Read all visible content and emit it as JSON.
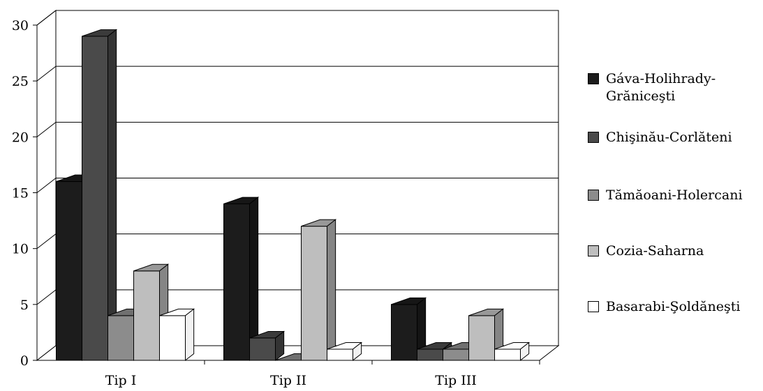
{
  "chart_data": {
    "type": "bar",
    "categories": [
      "Tip I",
      "Tip II",
      "Tip III"
    ],
    "ylim": [
      0,
      30
    ],
    "yticks": [
      0,
      5,
      10,
      15,
      20,
      25,
      30
    ],
    "grid": true,
    "legend_position": "right",
    "series": [
      {
        "name": "Gáva-Holihrady-Grăniceşti",
        "values": [
          16,
          14,
          5
        ],
        "color": "#1c1c1c"
      },
      {
        "name": "Chişinău-Corlăteni",
        "values": [
          29,
          2,
          1
        ],
        "color": "#4a4a4a"
      },
      {
        "name": "Tămăoani-Holercani",
        "values": [
          4,
          0,
          1
        ],
        "color": "#8c8c8c"
      },
      {
        "name": "Cozia-Saharna",
        "values": [
          8,
          12,
          4
        ],
        "color": "#bebebe"
      },
      {
        "name": "Basarabi-Şoldăneşti",
        "values": [
          4,
          1,
          1
        ],
        "color": "#ffffff"
      }
    ]
  }
}
